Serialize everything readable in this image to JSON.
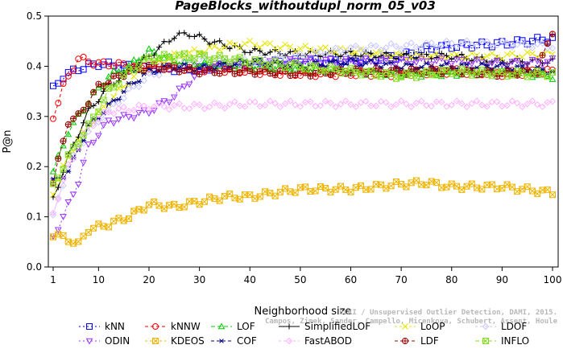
{
  "chart_data": {
    "type": "line",
    "title": "PageBlocks_withoutdupl_norm_05_v03",
    "xlabel": "Neighborhood size",
    "ylabel": "P@n",
    "xlim": [
      1,
      100
    ],
    "ylim": [
      0,
      0.5
    ],
    "xticks": [
      1,
      10,
      20,
      30,
      40,
      50,
      60,
      70,
      80,
      90,
      100
    ],
    "yticks": [
      "0.0",
      "0.1",
      "0.2",
      "0.3",
      "0.4",
      "0.5"
    ],
    "grid": false,
    "legend_position": "bottom",
    "series": [
      {
        "name": "kNN",
        "color": "#0000ff",
        "marker": "square",
        "dash": "2,3",
        "keypoints": [
          [
            1,
            0.355
          ],
          [
            3,
            0.38
          ],
          [
            6,
            0.395
          ],
          [
            10,
            0.405
          ],
          [
            20,
            0.395
          ],
          [
            30,
            0.395
          ],
          [
            40,
            0.405
          ],
          [
            50,
            0.41
          ],
          [
            60,
            0.41
          ],
          [
            70,
            0.42
          ],
          [
            75,
            0.435
          ],
          [
            80,
            0.44
          ],
          [
            90,
            0.445
          ],
          [
            100,
            0.455
          ]
        ]
      },
      {
        "name": "kNNW",
        "color": "#ff0000",
        "marker": "circle",
        "dash": "4,3",
        "keypoints": [
          [
            1,
            0.3
          ],
          [
            3,
            0.36
          ],
          [
            6,
            0.415
          ],
          [
            10,
            0.405
          ],
          [
            20,
            0.4
          ],
          [
            30,
            0.395
          ],
          [
            40,
            0.39
          ],
          [
            50,
            0.385
          ],
          [
            60,
            0.385
          ],
          [
            70,
            0.385
          ],
          [
            80,
            0.39
          ],
          [
            90,
            0.385
          ],
          [
            100,
            0.39
          ]
        ]
      },
      {
        "name": "LOF",
        "color": "#00cc00",
        "marker": "triangle",
        "dash": "5,3",
        "keypoints": [
          [
            1,
            0.19
          ],
          [
            4,
            0.27
          ],
          [
            8,
            0.33
          ],
          [
            12,
            0.38
          ],
          [
            16,
            0.4
          ],
          [
            20,
            0.43
          ],
          [
            25,
            0.41
          ],
          [
            30,
            0.405
          ],
          [
            40,
            0.4
          ],
          [
            50,
            0.395
          ],
          [
            60,
            0.39
          ],
          [
            70,
            0.385
          ],
          [
            80,
            0.385
          ],
          [
            90,
            0.39
          ],
          [
            100,
            0.38
          ]
        ]
      },
      {
        "name": "SimplifiedLOF",
        "color": "#000000",
        "marker": "plus",
        "dash": "",
        "keypoints": [
          [
            1,
            0.135
          ],
          [
            4,
            0.22
          ],
          [
            8,
            0.31
          ],
          [
            12,
            0.36
          ],
          [
            16,
            0.39
          ],
          [
            20,
            0.42
          ],
          [
            25,
            0.46
          ],
          [
            28,
            0.465
          ],
          [
            32,
            0.45
          ],
          [
            36,
            0.44
          ],
          [
            40,
            0.43
          ],
          [
            50,
            0.425
          ],
          [
            60,
            0.425
          ],
          [
            70,
            0.42
          ],
          [
            80,
            0.42
          ],
          [
            90,
            0.41
          ],
          [
            100,
            0.41
          ]
        ]
      },
      {
        "name": "LoOP",
        "color": "#e6e600",
        "marker": "x",
        "dash": "3,3",
        "keypoints": [
          [
            1,
            0.15
          ],
          [
            4,
            0.22
          ],
          [
            8,
            0.28
          ],
          [
            12,
            0.33
          ],
          [
            16,
            0.37
          ],
          [
            20,
            0.4
          ],
          [
            25,
            0.42
          ],
          [
            30,
            0.43
          ],
          [
            35,
            0.44
          ],
          [
            40,
            0.445
          ],
          [
            50,
            0.435
          ],
          [
            60,
            0.43
          ],
          [
            70,
            0.42
          ],
          [
            80,
            0.42
          ],
          [
            90,
            0.42
          ],
          [
            100,
            0.425
          ]
        ]
      },
      {
        "name": "LDOF",
        "color": "#c8c8ff",
        "marker": "diamond",
        "dash": "3,3",
        "keypoints": [
          [
            1,
            0.1
          ],
          [
            4,
            0.2
          ],
          [
            8,
            0.27
          ],
          [
            12,
            0.31
          ],
          [
            16,
            0.35
          ],
          [
            20,
            0.38
          ],
          [
            25,
            0.4
          ],
          [
            30,
            0.415
          ],
          [
            35,
            0.41
          ],
          [
            40,
            0.41
          ],
          [
            50,
            0.42
          ],
          [
            60,
            0.435
          ],
          [
            70,
            0.44
          ],
          [
            80,
            0.445
          ],
          [
            90,
            0.445
          ],
          [
            100,
            0.44
          ]
        ]
      },
      {
        "name": "ODIN",
        "color": "#9933ff",
        "marker": "triangle-down",
        "dash": "2,3",
        "keypoints": [
          [
            1,
            0.06
          ],
          [
            3,
            0.1
          ],
          [
            6,
            0.17
          ],
          [
            8,
            0.24
          ],
          [
            12,
            0.29
          ],
          [
            16,
            0.3
          ],
          [
            20,
            0.31
          ],
          [
            25,
            0.34
          ],
          [
            28,
            0.37
          ],
          [
            32,
            0.4
          ],
          [
            40,
            0.405
          ],
          [
            50,
            0.41
          ],
          [
            60,
            0.41
          ],
          [
            70,
            0.41
          ],
          [
            80,
            0.41
          ],
          [
            90,
            0.405
          ],
          [
            100,
            0.41
          ]
        ]
      },
      {
        "name": "KDEOS",
        "color": "#f0b400",
        "marker": "square-x",
        "dash": "3,3",
        "keypoints": [
          [
            1,
            0.065
          ],
          [
            4,
            0.055
          ],
          [
            6,
            0.045
          ],
          [
            8,
            0.075
          ],
          [
            12,
            0.085
          ],
          [
            16,
            0.1
          ],
          [
            20,
            0.125
          ],
          [
            25,
            0.12
          ],
          [
            30,
            0.13
          ],
          [
            35,
            0.14
          ],
          [
            40,
            0.14
          ],
          [
            50,
            0.155
          ],
          [
            60,
            0.155
          ],
          [
            70,
            0.165
          ],
          [
            75,
            0.168
          ],
          [
            80,
            0.16
          ],
          [
            90,
            0.16
          ],
          [
            100,
            0.148
          ]
        ]
      },
      {
        "name": "COF",
        "color": "#000080",
        "marker": "asterisk",
        "dash": "4,3",
        "keypoints": [
          [
            1,
            0.17
          ],
          [
            4,
            0.19
          ],
          [
            8,
            0.28
          ],
          [
            12,
            0.32
          ],
          [
            16,
            0.36
          ],
          [
            20,
            0.39
          ],
          [
            25,
            0.4
          ],
          [
            30,
            0.395
          ],
          [
            40,
            0.41
          ],
          [
            50,
            0.4
          ],
          [
            60,
            0.41
          ],
          [
            70,
            0.4
          ],
          [
            80,
            0.4
          ],
          [
            90,
            0.4
          ],
          [
            100,
            0.39
          ]
        ]
      },
      {
        "name": "FastABOD",
        "color": "#ffb0ff",
        "marker": "diamond",
        "dash": "3,3",
        "keypoints": [
          [
            1,
            0.11
          ],
          [
            4,
            0.2
          ],
          [
            8,
            0.28
          ],
          [
            12,
            0.31
          ],
          [
            16,
            0.315
          ],
          [
            20,
            0.32
          ],
          [
            30,
            0.32
          ],
          [
            40,
            0.325
          ],
          [
            50,
            0.325
          ],
          [
            60,
            0.325
          ],
          [
            70,
            0.325
          ],
          [
            80,
            0.325
          ],
          [
            90,
            0.325
          ],
          [
            100,
            0.325
          ]
        ]
      },
      {
        "name": "LDF",
        "color": "#990000",
        "marker": "circle-plus",
        "dash": "4,3",
        "keypoints": [
          [
            1,
            0.17
          ],
          [
            4,
            0.29
          ],
          [
            6,
            0.3
          ],
          [
            10,
            0.36
          ],
          [
            16,
            0.39
          ],
          [
            20,
            0.4
          ],
          [
            30,
            0.39
          ],
          [
            40,
            0.39
          ],
          [
            50,
            0.385
          ],
          [
            60,
            0.39
          ],
          [
            70,
            0.39
          ],
          [
            80,
            0.39
          ],
          [
            90,
            0.385
          ],
          [
            97,
            0.39
          ],
          [
            100,
            0.47
          ]
        ]
      },
      {
        "name": "INFLO",
        "color": "#88dd22",
        "marker": "square-x",
        "dash": "5,3",
        "keypoints": [
          [
            1,
            0.16
          ],
          [
            4,
            0.22
          ],
          [
            8,
            0.28
          ],
          [
            12,
            0.35
          ],
          [
            16,
            0.39
          ],
          [
            20,
            0.415
          ],
          [
            25,
            0.42
          ],
          [
            30,
            0.42
          ],
          [
            40,
            0.41
          ],
          [
            50,
            0.4
          ],
          [
            60,
            0.39
          ],
          [
            70,
            0.38
          ],
          [
            80,
            0.39
          ],
          [
            90,
            0.385
          ],
          [
            100,
            0.385
          ]
        ]
      }
    ]
  },
  "watermark": {
    "line1": "ELKI / Unsupervised Outlier Detection, DAMI, 2015.",
    "line2": "Campos, Zimek, Sander, Campello, Micenkova, Schubert, Assent, Houle"
  }
}
